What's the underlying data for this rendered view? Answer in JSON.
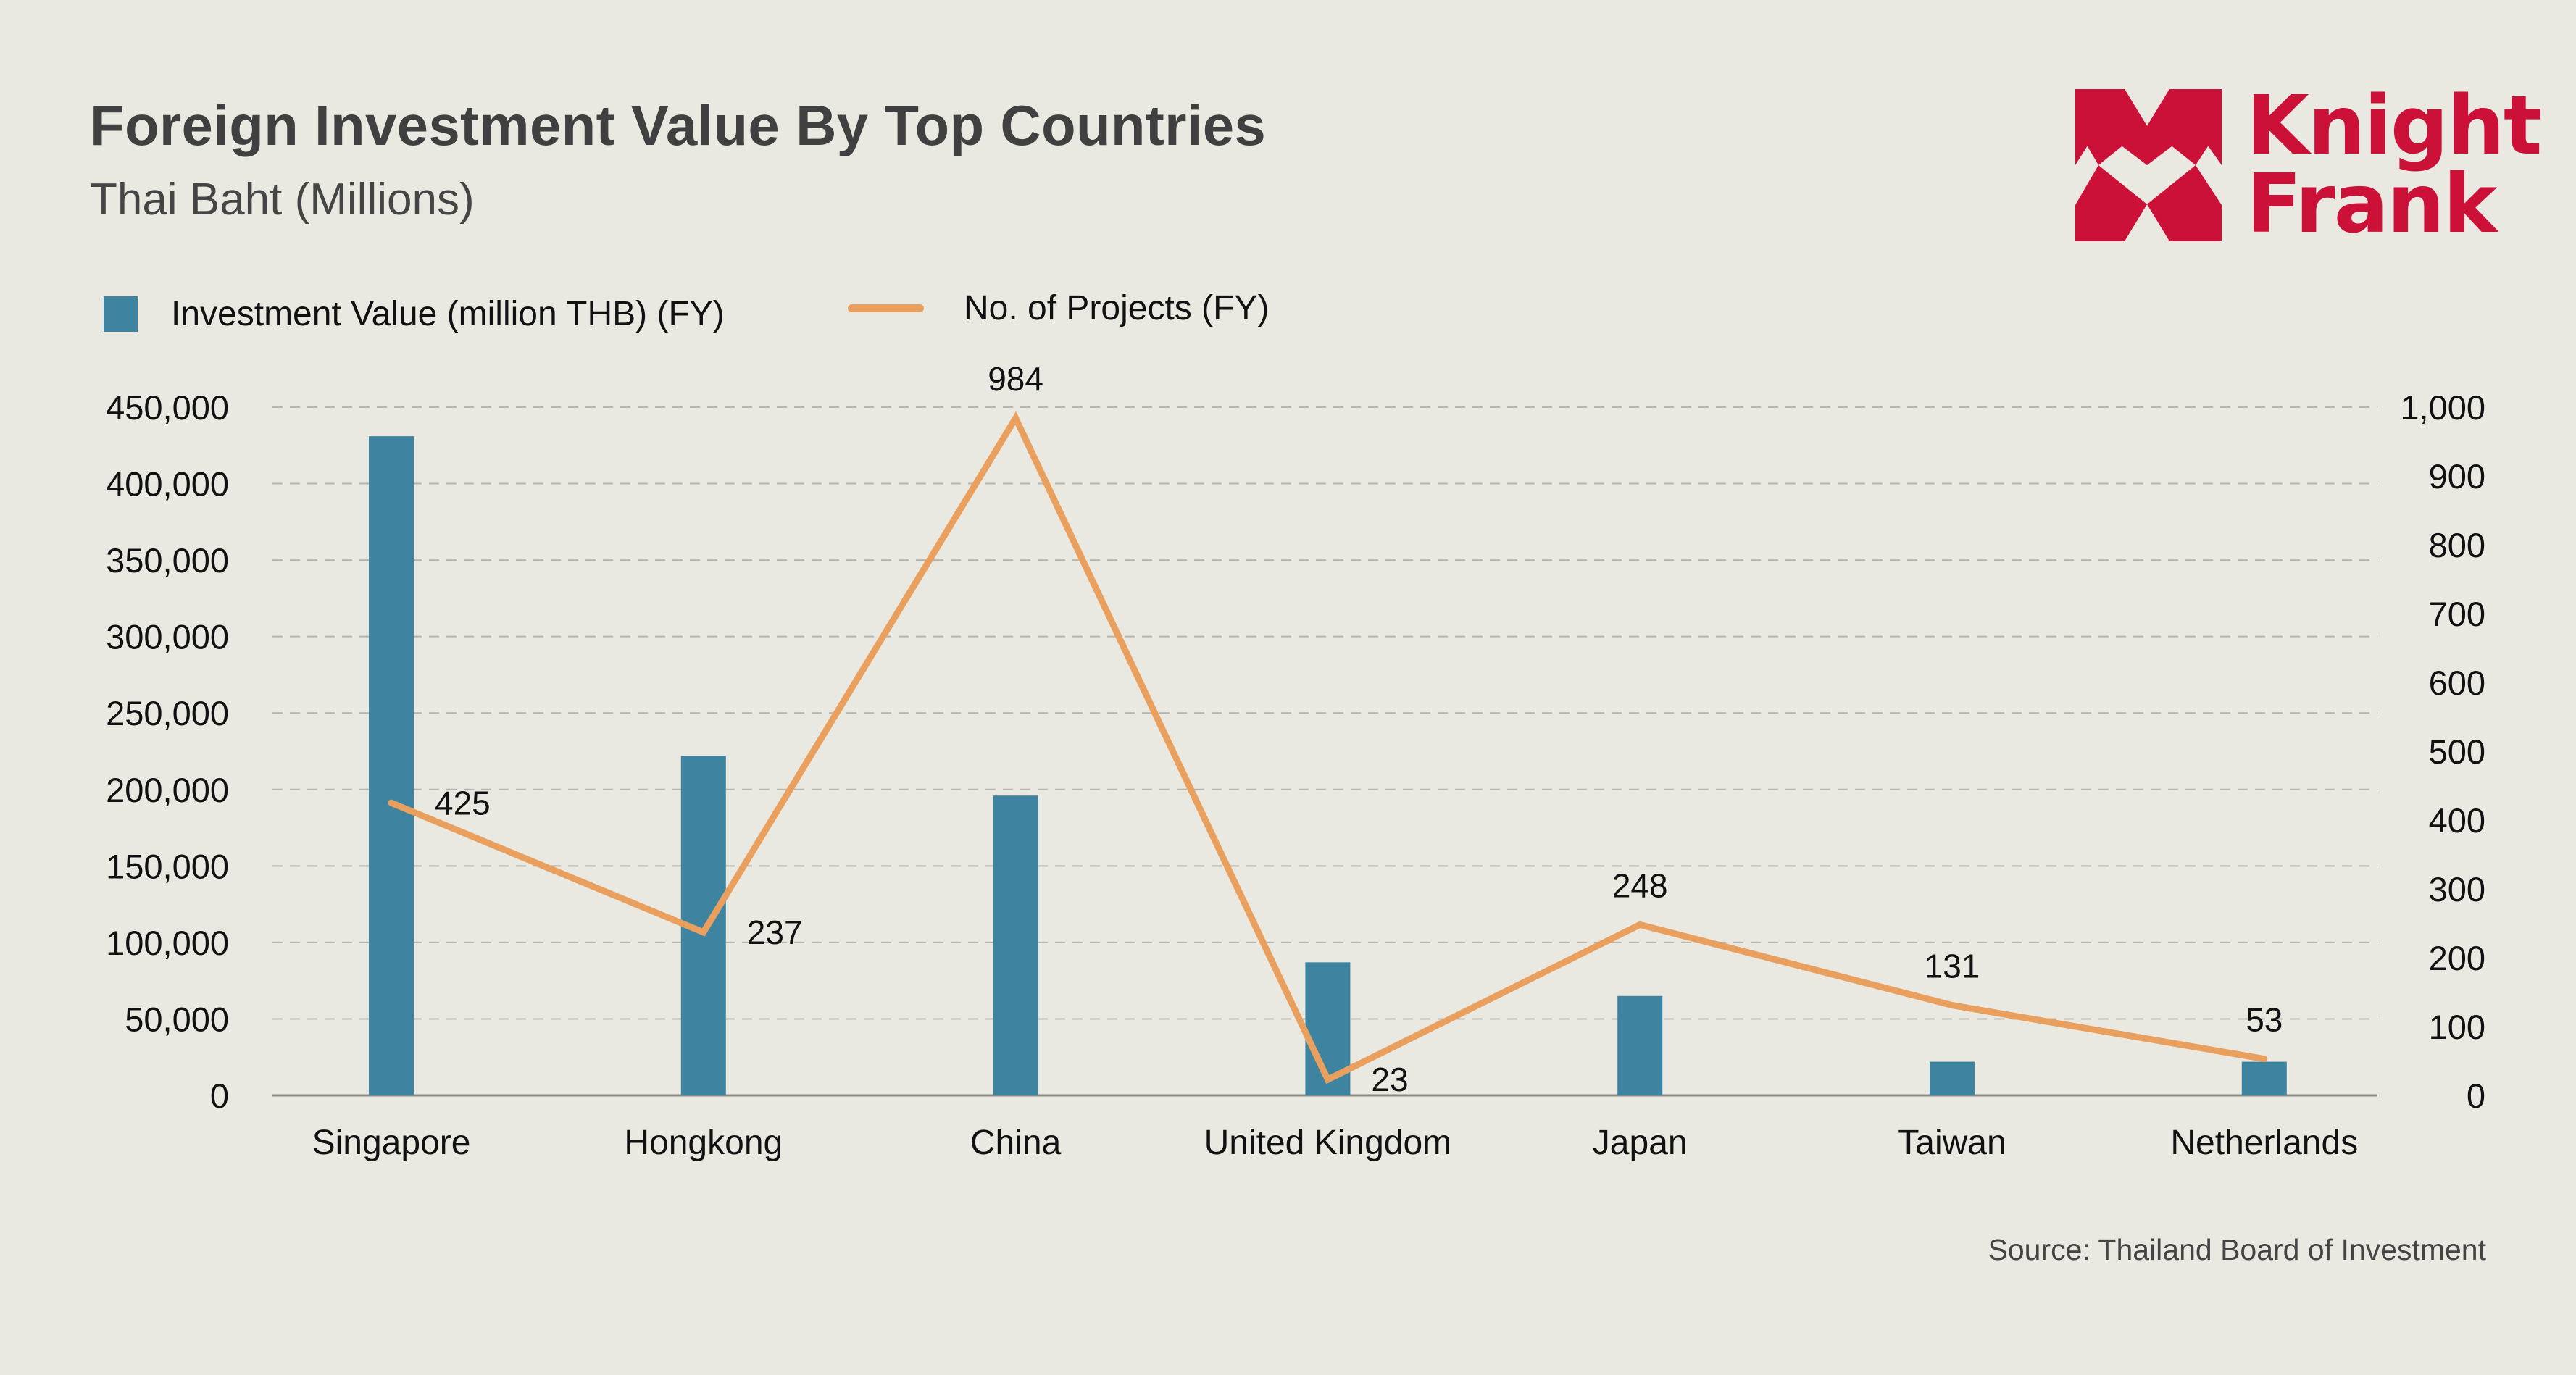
{
  "header": {
    "title": "Foreign Investment Value By Top Countries",
    "subtitle": "Thai Baht (Millions)"
  },
  "brand": {
    "name_line1": "Knight",
    "name_line2": "Frank",
    "color": "#CC1139"
  },
  "footer": {
    "source": "Source: Thailand Board of Investment"
  },
  "colors": {
    "background": "#EAE9E1",
    "bar": "#3E83A0",
    "line": "#E9A05E",
    "grid": "#B5B5AE",
    "axis": "#8A8A85"
  },
  "chart_data": {
    "type": "bar",
    "title": "Foreign Investment Value By Top Countries",
    "subtitle": "Thai Baht (Millions)",
    "categories": [
      "Singapore",
      "Hongkong",
      "China",
      "United Kingdom",
      "Japan",
      "Taiwan",
      "Netherlands"
    ],
    "series": [
      {
        "name": "Investment Value (million THB) (FY)",
        "type": "bar",
        "axis": "left",
        "values": [
          431000,
          222000,
          196000,
          87000,
          65000,
          22000,
          22000
        ]
      },
      {
        "name": "No. of Projects (FY)",
        "type": "line",
        "axis": "right",
        "values": [
          425,
          237,
          984,
          23,
          248,
          131,
          53
        ],
        "data_labels": [
          "425",
          "237",
          "984",
          "23",
          "248",
          "131",
          "53"
        ],
        "label_placement": [
          "right",
          "right",
          "above",
          "right",
          "above",
          "above",
          "above"
        ]
      }
    ],
    "left_axis": {
      "ylim": [
        0,
        450000
      ],
      "ticks": [
        0,
        50000,
        100000,
        150000,
        200000,
        250000,
        300000,
        350000,
        400000,
        450000
      ],
      "tick_labels": [
        "0",
        "50,000",
        "100,000",
        "150,000",
        "200,000",
        "250,000",
        "300,000",
        "350,000",
        "400,000",
        "450,000"
      ]
    },
    "right_axis": {
      "ylim": [
        0,
        1000
      ],
      "ticks": [
        0,
        100,
        200,
        300,
        400,
        500,
        600,
        700,
        800,
        900,
        1000
      ],
      "tick_labels": [
        "0",
        "100",
        "200",
        "300",
        "400",
        "500",
        "600",
        "700",
        "800",
        "900",
        "1,000"
      ]
    },
    "xlabel": "",
    "ylabel": "",
    "grid": "horizontal dashed",
    "legend": "top-left"
  }
}
